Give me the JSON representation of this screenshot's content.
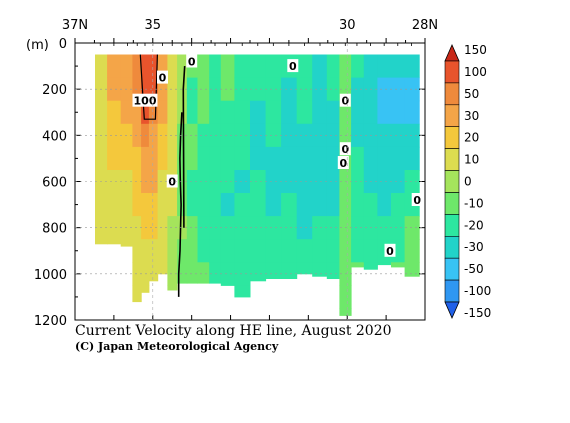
{
  "chart_data": {
    "type": "heatmap",
    "title": "Current Velocity along HE line, August 2020",
    "credit": "(C) Japan Meteorological Agency",
    "ylabel": "(m)",
    "x_tick_labels": [
      "37N",
      "35",
      "30",
      "28N"
    ],
    "x_ticks": [
      37,
      35,
      30,
      28
    ],
    "xlim": [
      37,
      28
    ],
    "ylim": [
      0,
      1200
    ],
    "y_ticks": [
      0,
      200,
      400,
      600,
      800,
      1000,
      1200
    ],
    "colorbar": {
      "levels": [
        -150,
        -100,
        -50,
        -30,
        -20,
        -10,
        0,
        10,
        20,
        30,
        50,
        100,
        150
      ],
      "labels": [
        "150",
        "100",
        "50",
        "30",
        "20",
        "10",
        "0",
        "-10",
        "-20",
        "-30",
        "-50",
        "-100",
        "-150"
      ],
      "colors": [
        "#2060e8",
        "#2f97f2",
        "#38c3f4",
        "#22d3c9",
        "#2de7a0",
        "#6ee86a",
        "#a5e45c",
        "#dcdc50",
        "#f4c83c",
        "#f4a548",
        "#ef8a3c",
        "#e8542c",
        "#c82818"
      ]
    },
    "contour_labels": [
      "100",
      "0",
      "0",
      "0",
      "0",
      "0",
      "0",
      "0",
      "0",
      "0"
    ],
    "sections": [
      {
        "lat": 36.35,
        "bottom": 870,
        "values": [
          16,
          17,
          18,
          18,
          17,
          16,
          15,
          14,
          12,
          10,
          8
        ]
      },
      {
        "lat": 36.0,
        "bottom": 870,
        "values": [
          35,
          30,
          28,
          24,
          20,
          18,
          16,
          14,
          12,
          10,
          8
        ]
      },
      {
        "lat": 35.65,
        "bottom": 880,
        "values": [
          45,
          40,
          34,
          28,
          22,
          18,
          16,
          14,
          12,
          10,
          8
        ]
      },
      {
        "lat": 35.4,
        "bottom": 1120,
        "values": [
          80,
          60,
          45,
          35,
          28,
          24,
          20,
          16,
          14,
          12,
          10,
          8,
          5
        ]
      },
      {
        "lat": 35.2,
        "bottom": 1080,
        "values": [
          140,
          120,
          100,
          65,
          45,
          35,
          28,
          22,
          18,
          14,
          12,
          10,
          6
        ]
      },
      {
        "lat": 35.0,
        "bottom": 1030,
        "values": [
          130,
          100,
          70,
          45,
          35,
          30,
          24,
          20,
          16,
          14,
          12,
          10
        ]
      },
      {
        "lat": 34.75,
        "bottom": 1000,
        "values": [
          40,
          36,
          30,
          26,
          22,
          18,
          16,
          13,
          12,
          10,
          8
        ]
      },
      {
        "lat": 34.5,
        "bottom": 1070,
        "values": [
          14,
          14,
          13,
          12,
          11,
          10,
          10,
          9,
          8,
          8,
          6
        ]
      },
      {
        "lat": 34.25,
        "bottom": 1040,
        "values": [
          4,
          2,
          0,
          -2,
          -3,
          -2,
          -1,
          2,
          -2,
          -4,
          -3
        ]
      },
      {
        "lat": 34.0,
        "bottom": 1040,
        "values": [
          -10,
          -12,
          -12,
          -8,
          -6,
          -12,
          -15,
          -8,
          -6,
          -10,
          -8
        ]
      },
      {
        "lat": 33.7,
        "bottom": 1040,
        "values": [
          -5,
          -8,
          -10,
          -12,
          -14,
          -16,
          -18,
          -14,
          -12,
          -10,
          -8
        ]
      },
      {
        "lat": 33.4,
        "bottom": 1040,
        "values": [
          -15,
          -18,
          -20,
          -16,
          -14,
          -12,
          -16,
          -20,
          -18,
          -14,
          -12
        ]
      },
      {
        "lat": 33.1,
        "bottom": 1050,
        "values": [
          -8,
          -10,
          -12,
          -15,
          -18,
          -20,
          -22,
          -18,
          -16,
          -14,
          -12
        ]
      },
      {
        "lat": 32.7,
        "bottom": 1100,
        "values": [
          -12,
          -14,
          -16,
          -18,
          -20,
          -22,
          -20,
          -18,
          -16,
          -14,
          -12
        ]
      },
      {
        "lat": 32.3,
        "bottom": 1030,
        "values": [
          -18,
          -20,
          -22,
          -24,
          -22,
          -20,
          -18,
          -16,
          -14,
          -12,
          -10
        ]
      },
      {
        "lat": 31.9,
        "bottom": 1020,
        "values": [
          -14,
          -16,
          -18,
          -20,
          -22,
          -24,
          -22,
          -20,
          -18,
          -16,
          -14
        ]
      },
      {
        "lat": 31.5,
        "bottom": 1020,
        "values": [
          -20,
          -22,
          -24,
          -26,
          -24,
          -22,
          -20,
          -18,
          -16,
          -14,
          -12
        ]
      },
      {
        "lat": 31.1,
        "bottom": 1000,
        "values": [
          -16,
          -18,
          -20,
          -22,
          -24,
          -26,
          -24,
          -22,
          -20,
          -18,
          -16
        ]
      },
      {
        "lat": 30.7,
        "bottom": 1010,
        "values": [
          -22,
          -24,
          -26,
          -28,
          -26,
          -24,
          -22,
          -20,
          -18,
          -16,
          -14
        ]
      },
      {
        "lat": 30.35,
        "bottom": 1020,
        "values": [
          -18,
          -20,
          -22,
          -24,
          -26,
          -24,
          -22,
          -20,
          -18,
          -16,
          -14
        ]
      },
      {
        "lat": 30.05,
        "bottom": 1180,
        "values": [
          -8,
          -6,
          -4,
          -6,
          -8,
          -6,
          -4,
          -2,
          -4,
          -6,
          -8,
          -6,
          -4
        ]
      },
      {
        "lat": 29.75,
        "bottom": 970,
        "values": [
          -20,
          -22,
          -24,
          -22,
          -20,
          -18,
          -16,
          -14,
          -12,
          -10,
          -8
        ]
      },
      {
        "lat": 29.4,
        "bottom": 980,
        "values": [
          -24,
          -26,
          -28,
          -26,
          -24,
          -22,
          -20,
          -18,
          -16,
          -14,
          -12
        ]
      },
      {
        "lat": 29.05,
        "bottom": 960,
        "values": [
          -25,
          -35,
          -40,
          -30,
          -26,
          -24,
          -22,
          -20,
          -18,
          -16,
          -14
        ]
      },
      {
        "lat": 28.7,
        "bottom": 970,
        "values": [
          -30,
          -45,
          -40,
          -28,
          -24,
          -22,
          -20,
          -18,
          -16,
          -10,
          -6
        ]
      },
      {
        "lat": 28.35,
        "bottom": 1010,
        "values": [
          -28,
          -35,
          -32,
          -26,
          -22,
          -18,
          -14,
          -10,
          -6,
          -4,
          -8
        ]
      }
    ]
  }
}
